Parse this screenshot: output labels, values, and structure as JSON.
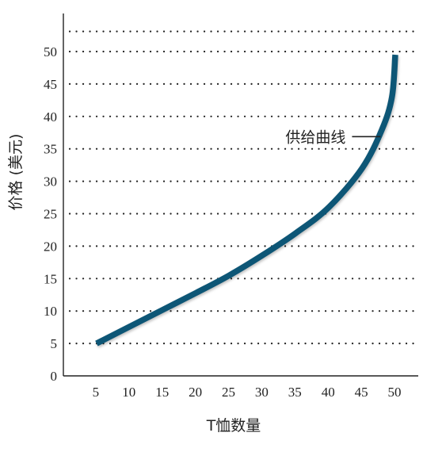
{
  "chart_data": {
    "type": "line",
    "title": "",
    "xlabel": "T恤数量",
    "ylabel": "价格 (美元)",
    "xlim": [
      0,
      53
    ],
    "ylim": [
      0,
      54
    ],
    "x_ticks": [
      5,
      10,
      15,
      20,
      25,
      30,
      35,
      40,
      45,
      50
    ],
    "y_ticks": [
      0,
      5,
      10,
      15,
      20,
      25,
      30,
      35,
      40,
      45,
      50
    ],
    "grid": "horizontal dotted",
    "series": [
      {
        "name": "供给曲线",
        "color": "#0d5676",
        "points": [
          {
            "x": 5,
            "y": 5
          },
          {
            "x": 10,
            "y": 7.6
          },
          {
            "x": 15,
            "y": 10.2
          },
          {
            "x": 20,
            "y": 12.8
          },
          {
            "x": 25,
            "y": 15.5
          },
          {
            "x": 30,
            "y": 18.6
          },
          {
            "x": 35,
            "y": 22
          },
          {
            "x": 40,
            "y": 26
          },
          {
            "x": 45,
            "y": 32
          },
          {
            "x": 48,
            "y": 38
          },
          {
            "x": 49.5,
            "y": 43
          },
          {
            "x": 50,
            "y": 49.5
          }
        ]
      }
    ],
    "annotation": {
      "text": "供给曲线",
      "x": 48.5,
      "y": 37
    }
  }
}
